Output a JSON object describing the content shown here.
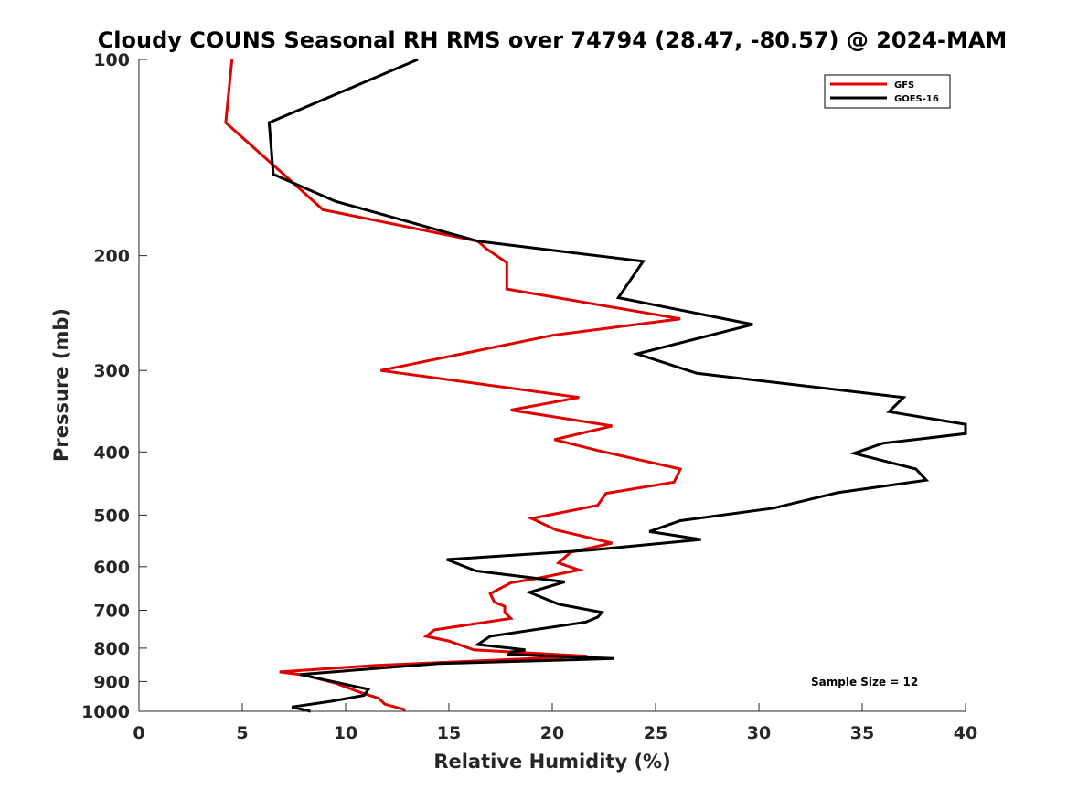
{
  "chart_data": {
    "type": "line",
    "title": "Cloudy COUNS Seasonal RH RMS over 74794 (28.47, -80.57) @ 2024-MAM",
    "xlabel": "Relative Humidity (%)",
    "ylabel": "Pressure (mb)",
    "xlim": [
      0,
      40
    ],
    "ylim": [
      100,
      1000
    ],
    "yscale": "log",
    "yreversed": true,
    "xticks": [
      0,
      5,
      10,
      15,
      20,
      25,
      30,
      35,
      40
    ],
    "yticks": [
      100,
      200,
      300,
      400,
      500,
      600,
      700,
      800,
      900,
      1000
    ],
    "grid": false,
    "legend_position": "top-right",
    "annotation": "Sample Size = 12",
    "series": [
      {
        "name": "GFS",
        "color": "#e00000",
        "points": [
          [
            4.5,
            100
          ],
          [
            4.2,
            125
          ],
          [
            7.0,
            150
          ],
          [
            8.9,
            170
          ],
          [
            16.4,
            190
          ],
          [
            16.8,
            195
          ],
          [
            17.8,
            205
          ],
          [
            17.8,
            225
          ],
          [
            26.2,
            250
          ],
          [
            20.0,
            265
          ],
          [
            11.7,
            300
          ],
          [
            21.3,
            330
          ],
          [
            18.0,
            345
          ],
          [
            22.9,
            365
          ],
          [
            20.1,
            383
          ],
          [
            22.2,
            398
          ],
          [
            26.2,
            425
          ],
          [
            25.9,
            445
          ],
          [
            22.6,
            463
          ],
          [
            22.2,
            483
          ],
          [
            19.0,
            506
          ],
          [
            20.2,
            527
          ],
          [
            22.9,
            552
          ],
          [
            20.9,
            570
          ],
          [
            20.3,
            592
          ],
          [
            21.3,
            607
          ],
          [
            19.3,
            625
          ],
          [
            18.0,
            635
          ],
          [
            17.0,
            660
          ],
          [
            17.2,
            680
          ],
          [
            17.7,
            690
          ],
          [
            17.7,
            705
          ],
          [
            18.0,
            720
          ],
          [
            14.3,
            750
          ],
          [
            13.9,
            767
          ],
          [
            15.0,
            780
          ],
          [
            16.2,
            805
          ],
          [
            21.7,
            823
          ],
          [
            11.5,
            850
          ],
          [
            6.8,
            870
          ],
          [
            8.0,
            880
          ],
          [
            9.5,
            905
          ],
          [
            10.7,
            935
          ],
          [
            11.6,
            955
          ],
          [
            11.9,
            975
          ],
          [
            12.9,
            995
          ]
        ]
      },
      {
        "name": "GOES-16",
        "color": "#000000",
        "points": [
          [
            13.5,
            100
          ],
          [
            6.3,
            125
          ],
          [
            6.5,
            150
          ],
          [
            9.5,
            165
          ],
          [
            16.4,
            190
          ],
          [
            24.4,
            204
          ],
          [
            23.2,
            232
          ],
          [
            29.7,
            255
          ],
          [
            24.1,
            283
          ],
          [
            27.0,
            303
          ],
          [
            37.0,
            330
          ],
          [
            36.3,
            347
          ],
          [
            40.0,
            363
          ],
          [
            40.0,
            375
          ],
          [
            36.0,
            388
          ],
          [
            34.6,
            402
          ],
          [
            37.6,
            425
          ],
          [
            38.1,
            442
          ],
          [
            33.8,
            462
          ],
          [
            30.7,
            488
          ],
          [
            26.2,
            510
          ],
          [
            24.7,
            530
          ],
          [
            27.2,
            545
          ],
          [
            21.8,
            566
          ],
          [
            14.9,
            585
          ],
          [
            16.3,
            609
          ],
          [
            20.6,
            633
          ],
          [
            18.9,
            657
          ],
          [
            20.3,
            685
          ],
          [
            22.4,
            705
          ],
          [
            22.2,
            717
          ],
          [
            21.6,
            730
          ],
          [
            17.0,
            767
          ],
          [
            16.4,
            790
          ],
          [
            18.7,
            805
          ],
          [
            18.0,
            811
          ],
          [
            17.9,
            818
          ],
          [
            23.0,
            830
          ],
          [
            14.5,
            845
          ],
          [
            7.8,
            878
          ],
          [
            11.1,
            925
          ],
          [
            10.9,
            945
          ],
          [
            9.3,
            965
          ],
          [
            7.4,
            985
          ],
          [
            8.3,
            1000
          ]
        ]
      }
    ]
  }
}
